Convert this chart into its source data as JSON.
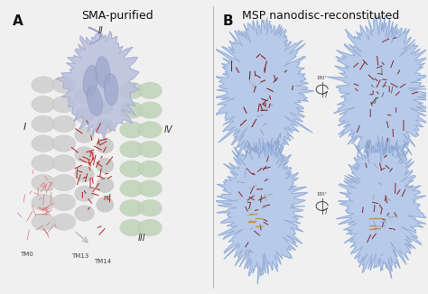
{
  "fig_width": 4.74,
  "fig_height": 3.26,
  "dpi": 100,
  "bg_color": "#f0f0f0",
  "panel_bg": "#ffffff",
  "title_A": "SMA-purified",
  "title_B": "MSP nanodisc-reconstituted",
  "label_A": "A",
  "label_B": "B",
  "title_fontsize": 9,
  "panel_label_fontsize": 11,
  "annotation_fontsize": 5,
  "subunit_I_color": "#d0d0d0",
  "subunit_II_color": "#b8bedd",
  "subunit_III_color": "#c0d4b8",
  "lipid_dark": "#aa1111",
  "lipid_light": "#dd7777",
  "nanodisc_fill": "#a8c0e8",
  "nanodisc_edge": "#7890b8",
  "struct_dark": "#7a0a0a",
  "struct_gray": "#909090",
  "green_struct": "#447744",
  "rot_color": "#444444"
}
